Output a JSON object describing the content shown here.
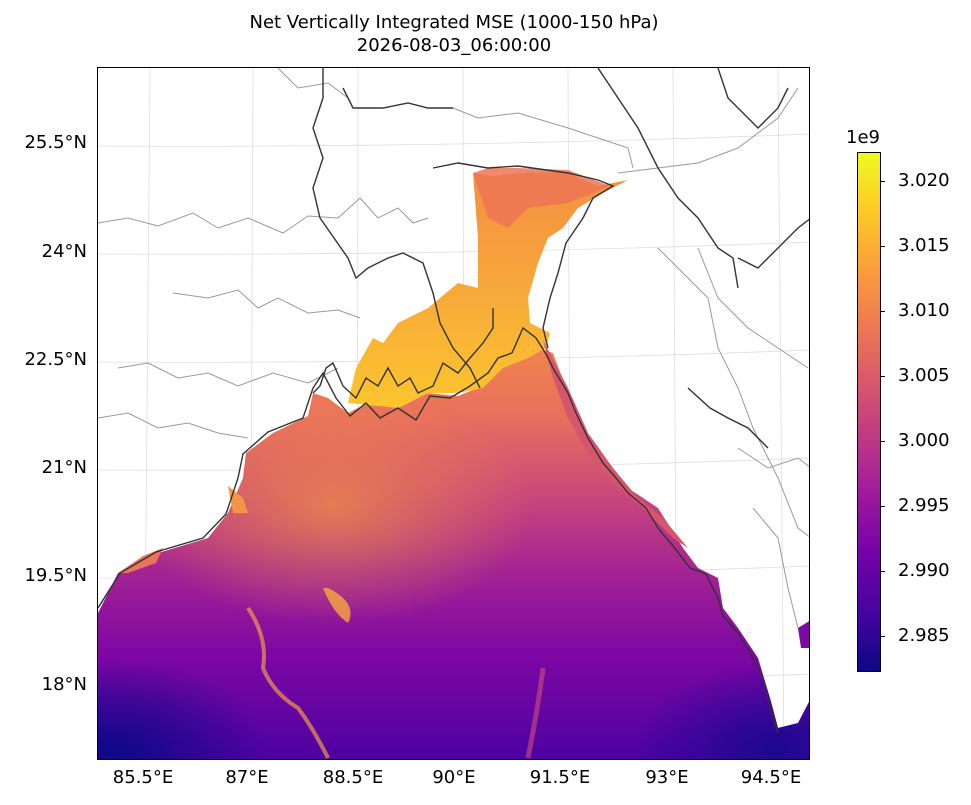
{
  "title": "Net Vertically Integrated MSE (1000-150 hPa)",
  "subtitle": "2026-08-03_06:00:00",
  "colormap": "plasma",
  "colormap_stops": [
    "#0d0887",
    "#46039f",
    "#7201a8",
    "#9c179e",
    "#bd3786",
    "#d8576b",
    "#ed7953",
    "#fb9f3a",
    "#fdca26",
    "#f0f921"
  ],
  "map": {
    "lon_ticks": [
      "85.5°E",
      "87°E",
      "88.5°E",
      "90°E",
      "91.5°E",
      "93°E",
      "94.5°E"
    ],
    "lat_ticks": [
      "25.5°N",
      "24°N",
      "22.5°N",
      "21°N",
      "19.5°N",
      "18°N"
    ],
    "gridlines": true,
    "coastline_color": "#333333",
    "border_color": "#999999"
  },
  "colorbar": {
    "exponent_label": "1e9",
    "tick_labels": [
      "3.020",
      "3.015",
      "3.010",
      "3.005",
      "3.000",
      "2.995",
      "2.990",
      "2.985"
    ],
    "range": [
      2.9822,
      3.0222
    ],
    "tick_values": [
      3.02,
      3.015,
      3.01,
      3.005,
      3.0,
      2.995,
      2.99,
      2.985
    ]
  }
}
